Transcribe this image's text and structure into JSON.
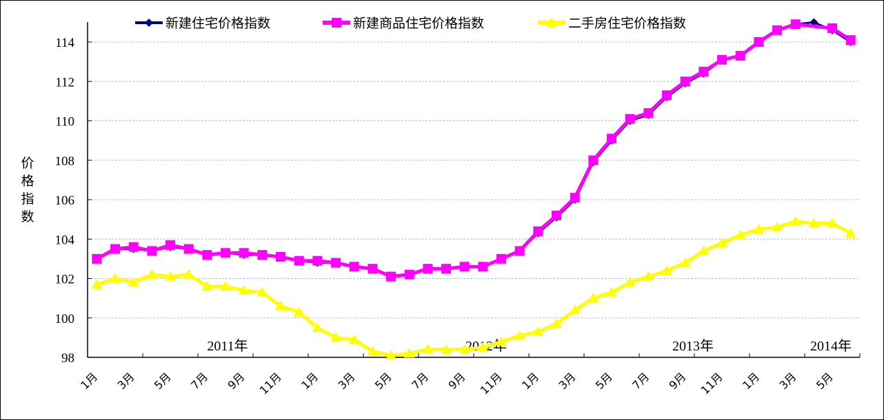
{
  "chart_data": {
    "type": "line",
    "title": "",
    "xlabel": "",
    "ylabel": "价格指数",
    "ylim": [
      98,
      115
    ],
    "yticks": [
      98,
      100,
      102,
      104,
      106,
      108,
      110,
      112,
      114
    ],
    "grid": true,
    "legend_position": "top",
    "x_tick_labels": [
      "1月",
      "3月",
      "5月",
      "7月",
      "9月",
      "11月",
      "1月",
      "3月",
      "5月",
      "7月",
      "9月",
      "11月",
      "1月",
      "3月",
      "5月",
      "7月",
      "9月",
      "11月",
      "1月",
      "3月",
      "5月"
    ],
    "year_labels": [
      "2011年",
      "2012年",
      "2013年",
      "2014年"
    ],
    "x": [
      "2011-01",
      "2011-02",
      "2011-03",
      "2011-04",
      "2011-05",
      "2011-06",
      "2011-07",
      "2011-08",
      "2011-09",
      "2011-10",
      "2011-11",
      "2011-12",
      "2012-01",
      "2012-02",
      "2012-03",
      "2012-04",
      "2012-05",
      "2012-06",
      "2012-07",
      "2012-08",
      "2012-09",
      "2012-10",
      "2012-11",
      "2012-12",
      "2013-01",
      "2013-02",
      "2013-03",
      "2013-04",
      "2013-05",
      "2013-06",
      "2013-07",
      "2013-08",
      "2013-09",
      "2013-10",
      "2013-11",
      "2013-12",
      "2014-01",
      "2014-02",
      "2014-03",
      "2014-04",
      "2014-05",
      "2014-06"
    ],
    "series": [
      {
        "name": "新建住宅价格指数",
        "color": "#000080",
        "marker": "diamond",
        "values": [
          103.0,
          103.5,
          103.5,
          103.4,
          103.6,
          103.5,
          103.2,
          103.3,
          103.2,
          103.2,
          103.1,
          102.9,
          102.8,
          102.8,
          102.6,
          102.5,
          102.1,
          102.2,
          102.5,
          102.5,
          102.6,
          102.6,
          103.0,
          103.4,
          104.3,
          105.1,
          106.0,
          107.9,
          109.0,
          110.0,
          110.3,
          111.2,
          111.9,
          112.4,
          113.1,
          113.3,
          114.0,
          114.6,
          114.9,
          115.0,
          114.6,
          114.0
        ]
      },
      {
        "name": "新建商品住宅价格指数",
        "color": "#FF00FF",
        "marker": "square",
        "values": [
          103.0,
          103.5,
          103.6,
          103.4,
          103.7,
          103.5,
          103.2,
          103.3,
          103.3,
          103.2,
          103.1,
          102.9,
          102.9,
          102.8,
          102.6,
          102.5,
          102.1,
          102.2,
          102.5,
          102.5,
          102.6,
          102.6,
          103.0,
          103.4,
          104.4,
          105.2,
          106.1,
          108.0,
          109.1,
          110.1,
          110.4,
          111.3,
          112.0,
          112.5,
          113.1,
          113.3,
          114.0,
          114.6,
          114.9,
          null,
          114.7,
          114.1
        ]
      },
      {
        "name": "二手房住宅价格指数",
        "color": "#FFFF00",
        "marker": "triangle",
        "values": [
          101.7,
          102.0,
          101.8,
          102.2,
          102.1,
          102.2,
          101.6,
          101.6,
          101.4,
          101.3,
          100.6,
          100.3,
          99.5,
          99.0,
          98.9,
          98.3,
          98.1,
          98.2,
          98.4,
          98.4,
          98.4,
          98.5,
          98.8,
          99.1,
          99.3,
          99.7,
          100.4,
          101.0,
          101.3,
          101.8,
          102.1,
          102.4,
          102.8,
          103.4,
          103.8,
          104.2,
          104.5,
          104.6,
          104.9,
          104.8,
          104.8,
          104.3
        ]
      }
    ]
  },
  "legend": {
    "items": [
      {
        "label": "新建住宅价格指数",
        "color": "#000080"
      },
      {
        "label": "新建商品住宅价格指数",
        "color": "#FF00FF"
      },
      {
        "label": "二手房住宅价格指数",
        "color": "#FFFF00"
      }
    ]
  },
  "axis": {
    "ylabel_chars": [
      "价",
      "格",
      "指",
      "数"
    ]
  }
}
